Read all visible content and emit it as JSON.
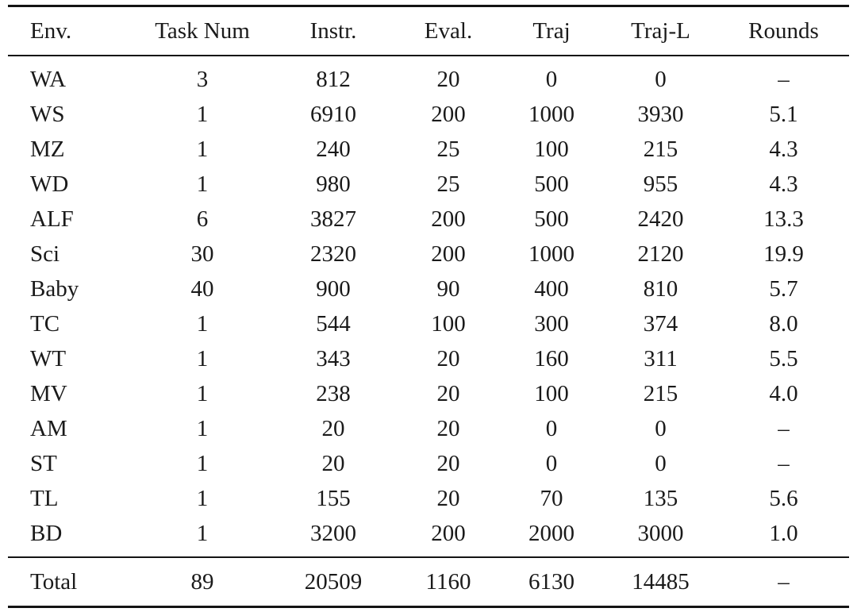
{
  "table": {
    "columns": [
      "Env.",
      "Task Num",
      "Instr.",
      "Eval.",
      "Traj",
      "Traj-L",
      "Rounds"
    ],
    "rows": [
      [
        "WA",
        "3",
        "812",
        "20",
        "0",
        "0",
        "–"
      ],
      [
        "WS",
        "1",
        "6910",
        "200",
        "1000",
        "3930",
        "5.1"
      ],
      [
        "MZ",
        "1",
        "240",
        "25",
        "100",
        "215",
        "4.3"
      ],
      [
        "WD",
        "1",
        "980",
        "25",
        "500",
        "955",
        "4.3"
      ],
      [
        "ALF",
        "6",
        "3827",
        "200",
        "500",
        "2420",
        "13.3"
      ],
      [
        "Sci",
        "30",
        "2320",
        "200",
        "1000",
        "2120",
        "19.9"
      ],
      [
        "Baby",
        "40",
        "900",
        "90",
        "400",
        "810",
        "5.7"
      ],
      [
        "TC",
        "1",
        "544",
        "100",
        "300",
        "374",
        "8.0"
      ],
      [
        "WT",
        "1",
        "343",
        "20",
        "160",
        "311",
        "5.5"
      ],
      [
        "MV",
        "1",
        "238",
        "20",
        "100",
        "215",
        "4.0"
      ],
      [
        "AM",
        "1",
        "20",
        "20",
        "0",
        "0",
        "–"
      ],
      [
        "ST",
        "1",
        "20",
        "20",
        "0",
        "0",
        "–"
      ],
      [
        "TL",
        "1",
        "155",
        "20",
        "70",
        "135",
        "5.6"
      ],
      [
        "BD",
        "1",
        "3200",
        "200",
        "2000",
        "3000",
        "1.0"
      ]
    ],
    "total_row": [
      "Total",
      "89",
      "20509",
      "1160",
      "6130",
      "14485",
      "–"
    ]
  },
  "chart_data": {
    "type": "table",
    "title": "Environment statistics",
    "columns": [
      "Env.",
      "Task Num",
      "Instr.",
      "Eval.",
      "Traj",
      "Traj-L",
      "Rounds"
    ],
    "rows": [
      [
        "WA",
        3,
        812,
        20,
        0,
        0,
        null
      ],
      [
        "WS",
        1,
        6910,
        200,
        1000,
        3930,
        5.1
      ],
      [
        "MZ",
        1,
        240,
        25,
        100,
        215,
        4.3
      ],
      [
        "WD",
        1,
        980,
        25,
        500,
        955,
        4.3
      ],
      [
        "ALF",
        6,
        3827,
        200,
        500,
        2420,
        13.3
      ],
      [
        "Sci",
        30,
        2320,
        200,
        1000,
        2120,
        19.9
      ],
      [
        "Baby",
        40,
        900,
        90,
        400,
        810,
        5.7
      ],
      [
        "TC",
        1,
        544,
        100,
        300,
        374,
        8.0
      ],
      [
        "WT",
        1,
        343,
        20,
        160,
        311,
        5.5
      ],
      [
        "MV",
        1,
        238,
        20,
        100,
        215,
        4.0
      ],
      [
        "AM",
        1,
        20,
        20,
        0,
        0,
        null
      ],
      [
        "ST",
        1,
        20,
        20,
        0,
        0,
        null
      ],
      [
        "TL",
        1,
        155,
        20,
        70,
        135,
        5.6
      ],
      [
        "BD",
        1,
        3200,
        200,
        2000,
        3000,
        1.0
      ],
      [
        "Total",
        89,
        20509,
        1160,
        6130,
        14485,
        null
      ]
    ]
  },
  "colors": {
    "text": "#1a1a1a",
    "rule": "#141414",
    "background": "#ffffff"
  }
}
